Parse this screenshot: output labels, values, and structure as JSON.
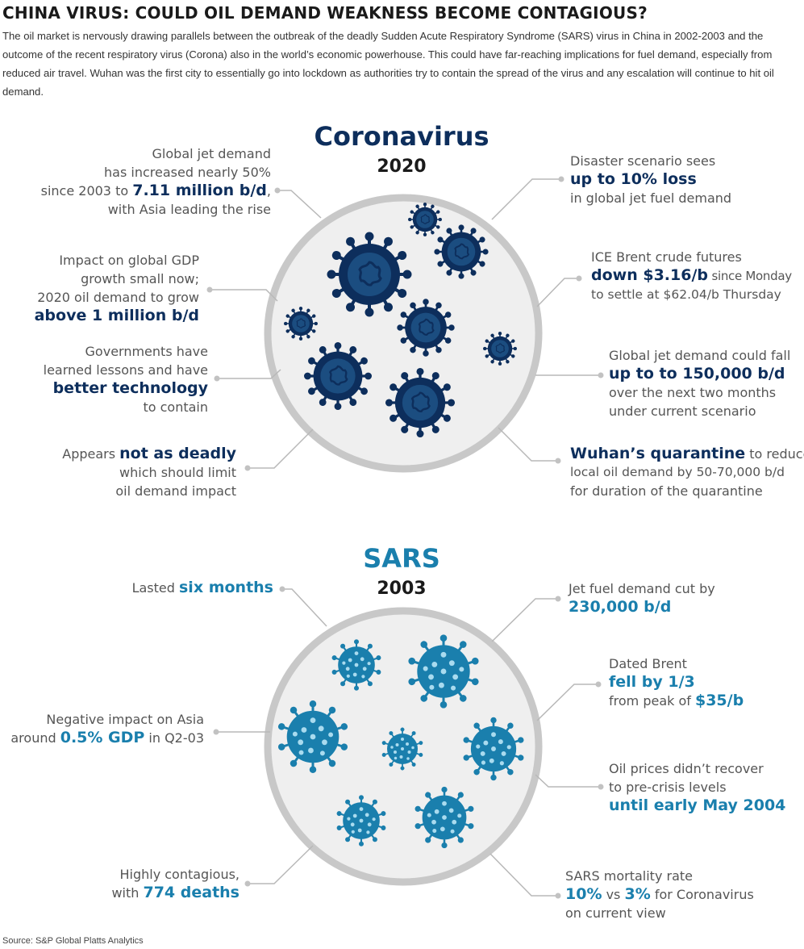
{
  "header": {
    "title": "CHINA VIRUS: COULD OIL DEMAND WEAKNESS BECOME CONTAGIOUS?",
    "intro": "The oil market is nervously drawing parallels between the outbreak of the deadly Sudden Acute Respiratory Syndrome (SARS) virus in China in 2002-2003 and the outcome of the recent respiratory virus (Corona) also in the world’s economic powerhouse. This could have far-reaching implications for fuel demand, especially from reduced air travel. Wuhan was the first city to essentially go into lockdown as authorities try to contain the spread of the virus and any escalation will continue to hit oil demand."
  },
  "colors": {
    "corona": "#0d2e5c",
    "sars": "#1a7fad",
    "circle_fill": "#efefef",
    "circle_ring": "#c8c8c8",
    "leader": "#b8b8b8"
  },
  "corona": {
    "title": "Coronavirus",
    "year": "2020",
    "notes": {
      "jet_demand": {
        "l1": "Global jet demand",
        "l2": "has increased nearly 50%",
        "l3a": "since 2003 to ",
        "l3b": "7.11 million b/d",
        "l3c": ",",
        "l4": "with Asia leading the rise"
      },
      "gdp": {
        "l1": "Impact on global GDP",
        "l2": "growth small now;",
        "l3": "2020 oil demand to grow",
        "l4": "above 1 million b/d"
      },
      "governments": {
        "l1": "Governments have",
        "l2": "learned lessons and have",
        "l3": "better technology",
        "l4": "to contain"
      },
      "deadly": {
        "l1a": "Appears ",
        "l1b": "not as deadly",
        "l2": "which should limit",
        "l3": "oil demand impact"
      },
      "disaster": {
        "l1": "Disaster scenario sees",
        "l2": "up to 10% loss",
        "l3": "in global jet fuel demand"
      },
      "brent": {
        "l1": "ICE Brent crude futures",
        "l2a": "down $3.16/b",
        "l2b": " since Monday",
        "l3": "to settle at $62.04/b Thursday"
      },
      "jet_fall": {
        "l1": "Global jet demand could fall",
        "l2": "up to to 150,000 b/d",
        "l3": "over the next two months",
        "l4": "under current scenario"
      },
      "wuhan": {
        "l1a": "Wuhan’s quarantine",
        "l1b": " to reduce",
        "l2": "local oil demand by 50-70,000 b/d",
        "l3": "for duration of the quarantine"
      }
    }
  },
  "sars": {
    "title": "SARS",
    "year": "2003",
    "notes": {
      "lasted": {
        "l1a": "Lasted ",
        "l1b": "six months"
      },
      "asia": {
        "l1": "Negative impact on Asia",
        "l2a": "around ",
        "l2b": "0.5% GDP",
        "l2c": " in Q2-03"
      },
      "contagious": {
        "l1": "Highly contagious,",
        "l2a": "with ",
        "l2b": "774 deaths"
      },
      "jet_cut": {
        "l1": "Jet fuel demand cut by",
        "l2": "230,000 b/d"
      },
      "dated_brent": {
        "l1": "Dated Brent",
        "l2": "fell by 1/3",
        "l3a": "from peak of ",
        "l3b": "$35/b"
      },
      "prices": {
        "l1": "Oil prices didn’t recover",
        "l2": "to pre-crisis levels",
        "l3": "until early May 2004"
      },
      "mortality": {
        "l1": "SARS mortality rate",
        "l2a": "10%",
        "l2b": " vs ",
        "l2c": "3%",
        "l2d": " for Coronavirus",
        "l3": "on current view"
      }
    }
  },
  "source": "Source: S&P Global Platts Analytics"
}
